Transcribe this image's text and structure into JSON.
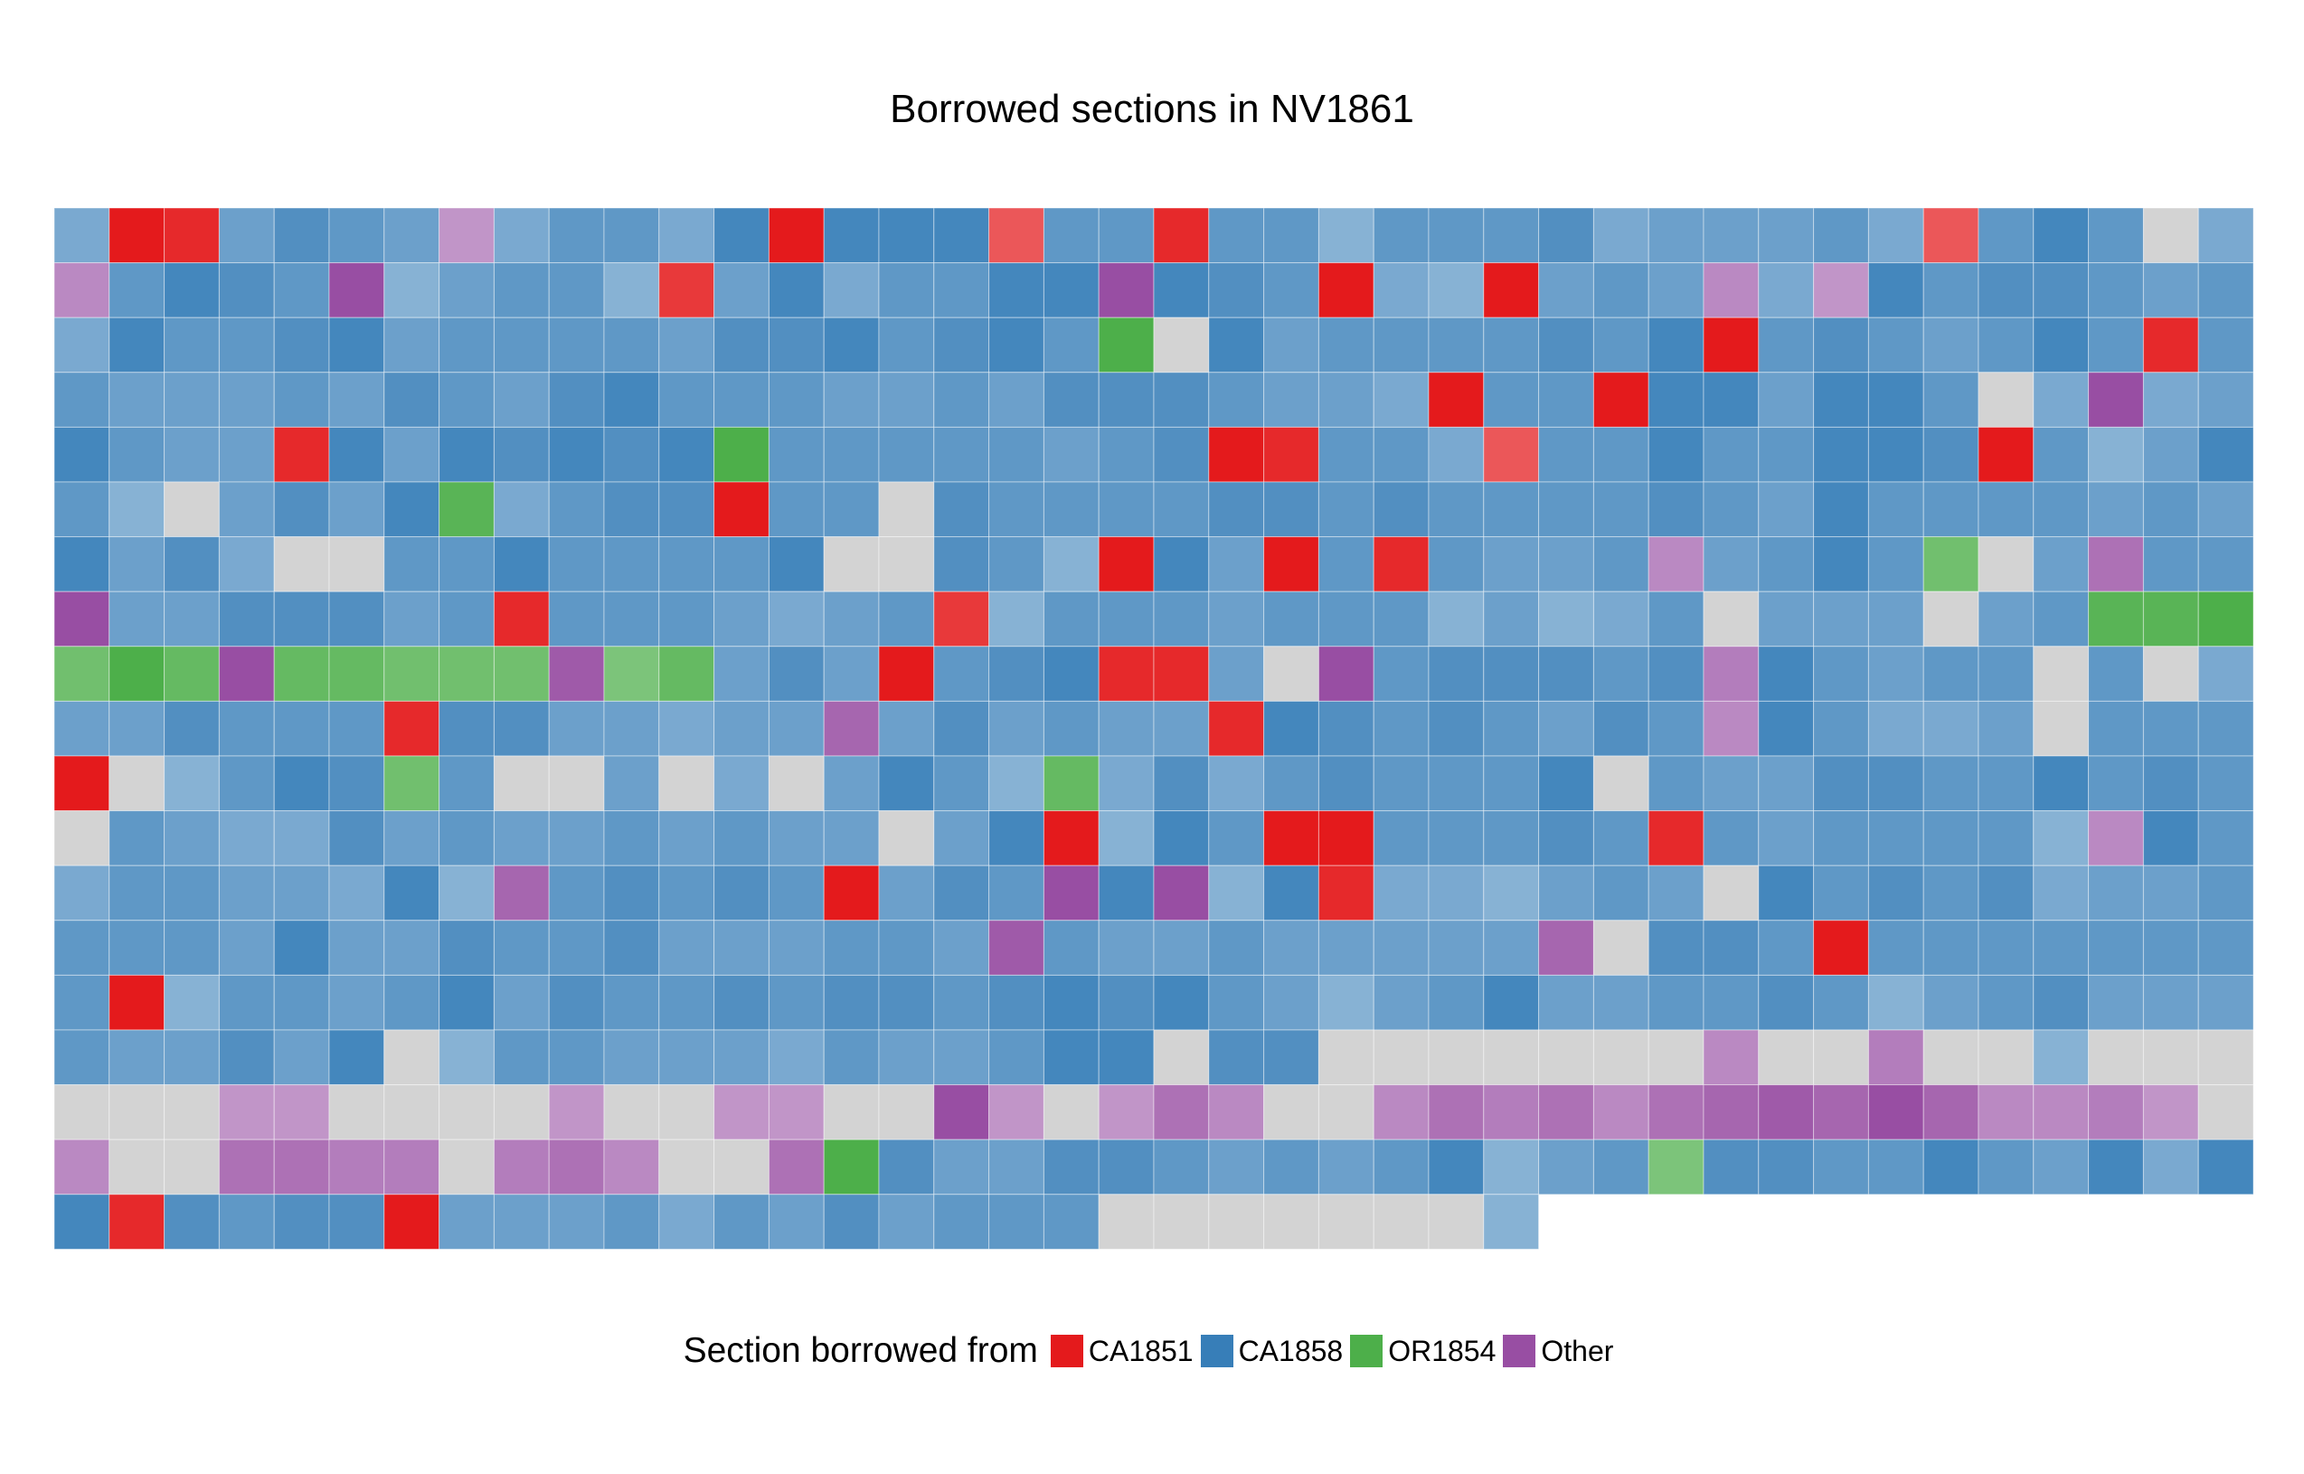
{
  "chart_data": {
    "type": "heatmap",
    "title": "Borrowed sections in NV1861",
    "columns": 40,
    "rows": 19,
    "legend": {
      "title": "Section borrowed from",
      "position": "bottom",
      "entries": [
        {
          "label": "CA1851",
          "color": "#e41a1c"
        },
        {
          "label": "CA1858",
          "color": "#377eb8"
        },
        {
          "label": "OR1854",
          "color": "#4daf4a"
        },
        {
          "label": "Other",
          "color": "#984ea3"
        }
      ]
    },
    "no_match_color": "#d3d3d3",
    "value_encoding": "code + similarity; R=CA1851, B=CA1858, G=OR1854, P=Other, N=no match; digit 1-9 = similarity (higher = more saturated)",
    "grid": [
      "B4 R9 R8 B5 B7 B6 B5 P3 B4 B6 B6 B4 B8 R9 B8 B8 B8 R5 B6 B6 R8 B6 B6 B3 B6 B6 B6 B7 B4 B5 B5 B5 B6 B4 R5 B6 B8 B6 N0 B4",
      "P4 B6 B8 B7 B6 P9 B3 B5 B6 B6 B3 R7 B5 B8 B4 B6 B6 B8 B8 P9 B8 B7 B6 R9 B4 B3 R9 B5 B6 B5 P4 B4 P3 B8 B6 B7 B7 B6 B5 B6",
      "B4 B8 B6 B6 B7 B8 B5 B6 B6 B6 B6 B5 B7 B7 B8 B6 B7 B8 B6 G9 N0 B8 B5 B6 B6 B6 B6 B7 B6 B8 R9 B6 B7 B6 B5 B6 B8 B6 R8 B6",
      "B6 B5 B5 B5 B6 B5 B7 B6 B5 B7 B8 B6 B6 B6 B5 B5 B6 B5 B7 B7 B7 B6 B5 B5 B4 R9 B6 B6 R9 B8 B8 B5 B8 B8 B6 N0 B4 P9 B4 B5",
      "B8 B6 B5 B5 R8 B8 B5 B8 B7 B8 B7 B8 G9 B6 B6 B6 B6 B6 B5 B6 B7 R9 R8 B6 B6 B4 R5 B6 B6 B8 B6 B6 B8 B8 B7 R9 B6 B3 B5 B8",
      "B6 B3 N0 B5 B7 B5 B8 G8 B4 B6 B7 B7 R9 B6 B6 N0 B7 B6 B6 B6 B6 B7 B7 B6 B7 B6 B6 B6 B6 B7 B6 B5 B8 B6 B6 B6 B6 B5 B6 B5",
      "B8 B5 B7 B4 N0 N0 B6 B6 B8 B6 B6 B6 B6 B8 N0 N0 B7 B6 B3 R9 B8 B5 R9 B6 R8 B6 B5 B5 B6 P4 B5 B6 B8 B6 G6 N0 B5 P6 B6 B6",
      "P9 B5 B5 B7 B7 B7 B5 B6 R8 B6 B6 B6 B5 B4 B5 B6 R7 B3 B6 B6 B6 B5 B6 B6 B6 B3 B5 B3 B4 B6 N0 B5 B5 B5 N0 B5 B6 G8 G8 G9",
      "G6 G9 G7 P9 G7 G7 G6 G6 G6 P8 G5 G7 B5 B7 B5 R9 B6 B7 B8 R8 R8 B5 N0 P9 B6 B7 B7 B7 B6 B7 P5 B8 B6 B5 B6 B6 N0 B6 N0 B4",
      "B5 B5 B7 B6 B6 B6 R8 B7 B7 B5 B5 B4 B5 B5 P7 B5 B7 B5 B6 B5 B5 R8 B8 B7 B6 B7 B6 B5 B7 B6 P4 B8 B6 B4 B4 B5 N0 B6 B6 B6",
      "R9 N0 B3 B6 B8 B7 G6 B6 N0 N0 B5 N0 B4 N0 B5 B8 B6 B3 G7 B4 B7 B4 B6 B7 B6 B6 B6 B8 N0 B6 B5 B5 B7 B7 B6 B6 B8 B6 B7 B6",
      "N0 B6 B5 B4 B4 B7 B5 B6 B5 B5 B6 B5 B6 B5 B5 N0 B5 B8 R9 B3 B8 B6 R9 R9 B6 B6 B6 B7 B6 R8 B6 B5 B6 B6 B6 B6 B3 P4 B8 B6",
      "B4 B6 B6 B5 B5 B4 B8 B3 P7 B6 B7 B6 B7 B6 R9 B5 B7 B6 P9 B8 P9 B3 B8 R8 B4 B4 B3 B5 B6 B5 N0 B8 B6 B7 B6 B7 B4 B5 B5 B6",
      "B6 B6 B6 B5 B8 B5 B5 B7 B6 B6 B7 B5 B5 B5 B6 B6 B5 P8 B6 B5 B5 B6 B5 B5 B5 B5 B5 P7 N0 B7 B7 B6 R9 B6 B6 B6 B6 B6 B6 B6",
      "B6 R9 B3 B6 B6 B5 B6 B8 B5 B7 B6 B6 B7 B6 B7 B7 B6 B7 B8 B7 B8 B6 B5 B3 B5 B6 B8 B5 B5 B6 B6 B7 B6 B3 B5 B6 B7 B5 B5 B5",
      "B6 B5 B5 B7 B5 B8 N0 B3 B6 B6 B5 B5 B5 B4 B6 B5 B5 B6 B8 B8 N0 B7 B7 N0 N0 N0 N0 N0 N0 N0 P4 N0 N0 P5 N0 N0 B3 N0 N0 N0",
      "N0 N0 N0 P3 P3 N0 N0 N0 N0 P3 N0 N0 P3 P3 N0 N0 P9 P3 N0 P3 P6 P4 N0 N0 P4 P6 P5 P6 P4 P6 P7 P8 P7 P9 P7 P4 P4 P5 P3 N0",
      "P4 N0 N0 P6 P6 P5 P5 N0 P5 P6 P4 N0 N0 P6 G9 B7 B5 B5 B7 B7 B6 B5 B6 B5 B6 B8 B3 B5 B6 G5 B7 B7 B6 B6 B8 B6 B5 B8 B4 B8",
      "B8 R8 B7 B6 B7 B7 R9 B5 B5 B5 B6 B4 B6 B5 B7 B5 B6 B6 B6 N0 N0 N0 N0 N0 N0 N0 B3"
    ]
  }
}
